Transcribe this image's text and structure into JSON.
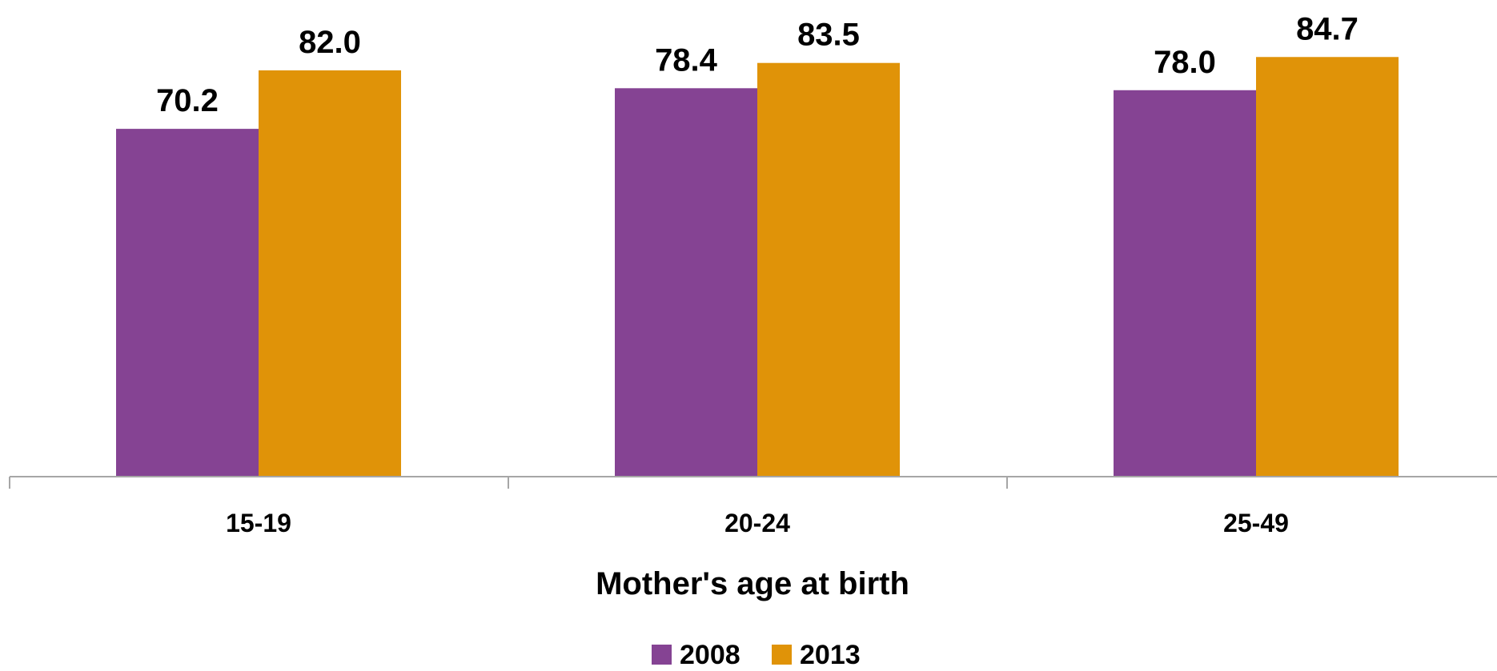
{
  "chart_data": {
    "type": "bar",
    "categories": [
      "15-19",
      "20-24",
      "25-49"
    ],
    "series": [
      {
        "name": "2008",
        "values": [
          70.2,
          78.4,
          78.0
        ],
        "color": "#854393"
      },
      {
        "name": "2013",
        "values": [
          82.0,
          83.5,
          84.7
        ],
        "color": "#E09308"
      }
    ],
    "data_labels": [
      [
        "70.2",
        "78.4",
        "78.0"
      ],
      [
        "82.0",
        "83.5",
        "84.7"
      ]
    ],
    "title": "",
    "xlabel": "Mother's age at birth",
    "ylabel": "",
    "ylim": [
      0,
      90
    ],
    "grid": false,
    "legend_position": "bottom",
    "axis_color": "#A6A6A6"
  }
}
